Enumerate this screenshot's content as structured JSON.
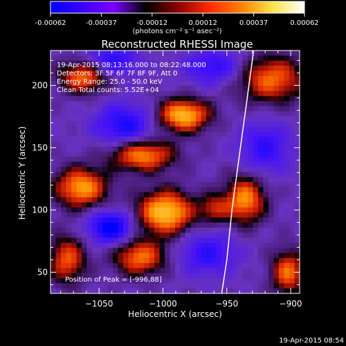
{
  "colorbar": {
    "tick_labels": [
      "-0.00062",
      "-0.00037",
      "-0.00012",
      "0.00012",
      "0.00037",
      "0.00062"
    ],
    "unit_label": "(photons cm⁻² s⁻¹ asec⁻²)",
    "colors": [
      "#0000ff",
      "#3a00ff",
      "#7a00ff",
      "#000000",
      "#8b0000",
      "#ff2a00",
      "#ff7f00",
      "#ffe34a",
      "#ffffff"
    ]
  },
  "chart_data": {
    "type": "heatmap",
    "title": "Reconstructed RHESSI Image",
    "xlabel": "Heliocentric X (arcsec)",
    "ylabel": "Heliocentric Y (arcsec)",
    "xlim": [
      -1088,
      -893
    ],
    "ylim": [
      33,
      228
    ],
    "x_ticks": [
      -1050,
      -1000,
      -950,
      -900
    ],
    "x_tick_labels": [
      "−1050",
      "−1000",
      "−950",
      "−900"
    ],
    "y_ticks": [
      50,
      100,
      150,
      200
    ],
    "y_tick_labels": [
      "50",
      "100",
      "150",
      "200"
    ],
    "annotations": [
      "19-Apr-2015 08:13:16.000 to 08:22:48.000",
      "Detectors: 3F 5F 6F 7F 8F 9F, Att 0",
      "Energy Range: 25.0 - 50.0 keV",
      "Clean    Total counts: 5.52E+04"
    ],
    "peak_label": "Position of Peak = [-996,88]",
    "peak_position": [
      -996,
      88
    ],
    "limb_curve": [
      [
        -954,
        33
      ],
      [
        -950,
        60
      ],
      [
        -946,
        100
      ],
      [
        -942,
        130
      ],
      [
        -938,
        160
      ],
      [
        -934,
        190
      ],
      [
        -929,
        228
      ]
    ],
    "sources": [
      {
        "x": -1062,
        "y": 207,
        "sx": 13,
        "sy": 9,
        "amp": 0.72
      },
      {
        "x": -984,
        "y": 176,
        "sx": 14,
        "sy": 9,
        "amp": 0.95
      },
      {
        "x": -915,
        "y": 205,
        "sx": 18,
        "sy": 13,
        "amp": 0.7
      },
      {
        "x": -1016,
        "y": 144,
        "sx": 17,
        "sy": 9,
        "amp": 0.8
      },
      {
        "x": -1064,
        "y": 118,
        "sx": 14,
        "sy": 11,
        "amp": 0.85
      },
      {
        "x": -998,
        "y": 98,
        "sx": 15,
        "sy": 12,
        "amp": 1.0
      },
      {
        "x": -960,
        "y": 101,
        "sx": 8,
        "sy": 8,
        "amp": 0.45
      },
      {
        "x": -936,
        "y": 108,
        "sx": 11,
        "sy": 13,
        "amp": 0.8
      },
      {
        "x": -1075,
        "y": 60,
        "sx": 10,
        "sy": 13,
        "amp": 0.65
      },
      {
        "x": -1018,
        "y": 62,
        "sx": 14,
        "sy": 10,
        "amp": 0.72
      },
      {
        "x": -902,
        "y": 50,
        "sx": 9,
        "sy": 12,
        "amp": 0.7
      },
      {
        "x": -1041,
        "y": 86,
        "sx": 12,
        "sy": 9,
        "amp": -0.75
      },
      {
        "x": -1030,
        "y": 168,
        "sx": 16,
        "sy": 12,
        "amp": -0.55
      },
      {
        "x": -1040,
        "y": 220,
        "sx": 14,
        "sy": 9,
        "amp": -0.5
      },
      {
        "x": -960,
        "y": 215,
        "sx": 16,
        "sy": 10,
        "amp": -0.45
      },
      {
        "x": -920,
        "y": 150,
        "sx": 14,
        "sy": 14,
        "amp": -0.45
      },
      {
        "x": -965,
        "y": 65,
        "sx": 16,
        "sy": 12,
        "amp": -0.45
      }
    ]
  },
  "footer": {
    "timestamp": "19-Apr-2015 08:54"
  }
}
